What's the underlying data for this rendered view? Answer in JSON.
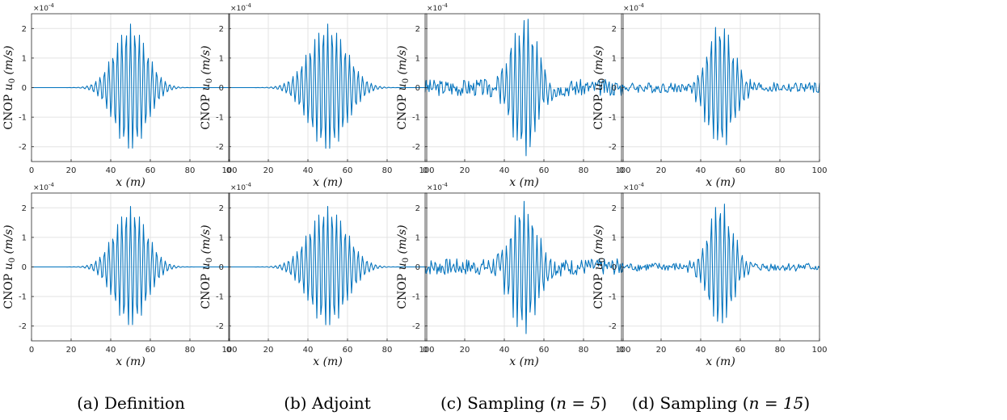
{
  "figure": {
    "captions": [
      {
        "prefix": "(a) Definition",
        "math": "",
        "suffix": ""
      },
      {
        "prefix": "(b) Adjoint",
        "math": "",
        "suffix": ""
      },
      {
        "prefix": "(c) Sampling (",
        "math": "n = 5",
        "suffix": ")"
      },
      {
        "prefix": "(d) Sampling (",
        "math": "n = 15",
        "suffix": ")"
      }
    ]
  },
  "chart_data": [
    {
      "id": "a-top",
      "type": "line",
      "column": 0,
      "row": 0,
      "variant": "definition",
      "amp": 2.15,
      "sigma": 8.2,
      "period": 2.2,
      "phase": 0.0,
      "noise_amp": 0,
      "seed": 1
    },
    {
      "id": "b-top",
      "type": "line",
      "column": 1,
      "row": 0,
      "variant": "adjoint",
      "amp": 2.15,
      "sigma": 9.5,
      "period": 2.2,
      "phase": 0.0,
      "noise_amp": 0,
      "seed": 2
    },
    {
      "id": "c-top",
      "type": "line",
      "column": 2,
      "row": 0,
      "variant": "sampling n=5",
      "amp": 2.2,
      "sigma": 7.0,
      "period": 2.2,
      "phase": 0.4,
      "noise_amp": 0.35,
      "seed": 3
    },
    {
      "id": "d-top",
      "type": "line",
      "column": 3,
      "row": 0,
      "variant": "sampling n=15",
      "amp": 2.05,
      "sigma": 6.8,
      "period": 2.2,
      "phase": 0.8,
      "noise_amp": 0.22,
      "seed": 4
    },
    {
      "id": "a-bottom",
      "type": "line",
      "column": 0,
      "row": 1,
      "variant": "definition",
      "amp": 2.05,
      "sigma": 8.2,
      "period": 2.2,
      "phase": 0.0,
      "noise_amp": 0,
      "seed": 5
    },
    {
      "id": "b-bottom",
      "type": "line",
      "column": 1,
      "row": 1,
      "variant": "adjoint",
      "amp": 2.05,
      "sigma": 9.5,
      "period": 2.2,
      "phase": 0.0,
      "noise_amp": 0,
      "seed": 6
    },
    {
      "id": "c-bottom",
      "type": "line",
      "column": 2,
      "row": 1,
      "variant": "sampling n=5",
      "amp": 2.15,
      "sigma": 6.5,
      "period": 2.2,
      "phase": 0.3,
      "noise_amp": 0.35,
      "seed": 7
    },
    {
      "id": "d-bottom",
      "type": "line",
      "column": 3,
      "row": 1,
      "variant": "sampling n=15",
      "amp": 2.1,
      "sigma": 6.2,
      "period": 2.2,
      "phase": 0.6,
      "noise_amp": 0.18,
      "seed": 8
    }
  ],
  "axes": {
    "xlim": [
      0,
      100
    ],
    "ylim": [
      -2.5,
      2.5
    ],
    "xticks": [
      0,
      20,
      40,
      60,
      80,
      100
    ],
    "yticks": [
      -2,
      -1,
      0,
      1,
      2
    ],
    "ylabel_prefix": "CNOP ",
    "ylabel_math": "u0 (m/s)",
    "xlabel_math": "x (m)",
    "y_exponent": "×10-4",
    "grid": true
  },
  "colors": {
    "line": "#0072BD",
    "grid": "#e3e3e3",
    "axis": "#262626"
  }
}
